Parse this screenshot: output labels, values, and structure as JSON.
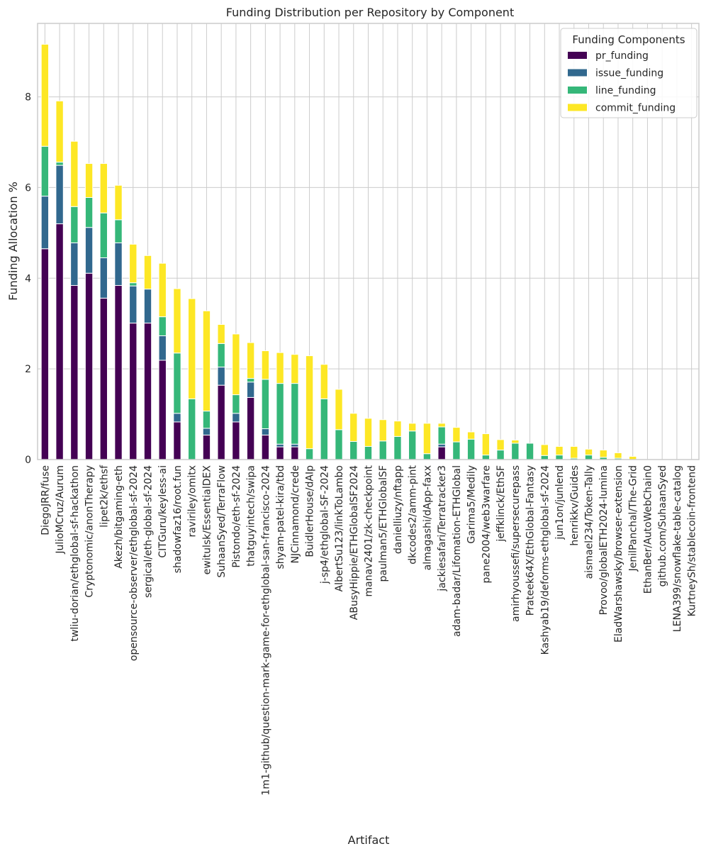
{
  "chart_data": {
    "type": "bar",
    "stacked": true,
    "title": "Funding Distribution per Repository by Component",
    "xlabel": "Artifact",
    "ylabel": "Funding Allocation %",
    "ylim": [
      0,
      9.62
    ],
    "yticks": [
      0,
      2,
      4,
      6,
      8
    ],
    "grid": true,
    "legend": {
      "title": "Funding Components",
      "placement": "top-right"
    },
    "categories": [
      "DiegoJRR/fuse",
      "JulioMCruz/Aurum",
      "twliu-dorian/ethglobal-sf-hackathon",
      "Cryptonomic/anonTherapy",
      "lipet2k/ethsf",
      "Akezh/bitgaming-eth",
      "opensource-observer/ethglobal-sf-2024",
      "sergical/eth-global-sf-2024",
      "CITGuru/keyless-ai",
      "shadowfaz16/root.fun",
      "raviriley/omitx",
      "ewitulsk/EssentialDEX",
      "SuhaanSyed/TerraFlow",
      "Pistondo/eth-sf-2024",
      "thatguyintech/swipa",
      "1m1-github/question-mark-game-for-ethglobal-san-francisco-2024",
      "shyam-patel-kira/tbd",
      "NJCinnamond/crede",
      "BuidlerHouse/dAIp",
      "j-sp4/ethglobal-SF-2024",
      "AlbertSu123/linkToLambo",
      "ABusyHippie/ETHGlobalSF2024",
      "manav2401/zk-checkpoint",
      "paulman5/ETHGlobalSF",
      "danielliuzy/nftapp",
      "dkcodes2/amm-pint",
      "almagashi/dApp-faxx",
      "jackiesafari/Terratracker3",
      "adam-badar/Lifomation-ETHGlobal",
      "Garima5/Medily",
      "pane2004/web3warfare",
      "jeffklinck/EthSF",
      "amirhyoussefi/supersecurepass",
      "Prateek64X/EthGlobal-Fantasy",
      "Kashyab19/deforms-ethglobal-sf-2024",
      "jun1on/junlend",
      "henrikkv/Guides",
      "aismael234/Token-Tally",
      "Provoo/globalETH2024-lumina",
      "EladWarshawsky/browser-extension",
      "JenilPanchal/The-Grid",
      "EthanBer/AutoWebChain0",
      "github.com/SuhaanSyed",
      "LENA399/snowflake-table-catalog",
      "KurtneySh/stablecoin-frontend"
    ],
    "series": [
      {
        "name": "pr_funding",
        "color": "#440154",
        "values": [
          4.65,
          5.2,
          3.84,
          4.11,
          3.56,
          3.84,
          3.01,
          3.01,
          2.19,
          0.83,
          0,
          0.54,
          1.64,
          0.83,
          1.37,
          0.54,
          0.28,
          0.28,
          0,
          0,
          0,
          0,
          0,
          0,
          0,
          0,
          0,
          0.28,
          0,
          0,
          0,
          0,
          0,
          0,
          0,
          0,
          0,
          0,
          0,
          0,
          0,
          0,
          0,
          0,
          0
        ]
      },
      {
        "name": "issue_funding",
        "color": "#31688e",
        "values": [
          1.16,
          1.29,
          0.94,
          1.01,
          0.89,
          0.94,
          0.82,
          0.75,
          0.54,
          0.19,
          0,
          0.15,
          0.4,
          0.19,
          0.34,
          0.14,
          0.06,
          0.06,
          0,
          0,
          0,
          0,
          0,
          0,
          0,
          0,
          0,
          0.06,
          0,
          0,
          0,
          0,
          0,
          0,
          0,
          0,
          0,
          0,
          0,
          0,
          0,
          0,
          0,
          0,
          0
        ]
      },
      {
        "name": "line_funding",
        "color": "#35b779",
        "values": [
          1.1,
          0.07,
          0.8,
          0.66,
          0.99,
          0.51,
          0.07,
          0,
          0.42,
          1.33,
          1.34,
          0.38,
          0.52,
          0.41,
          0.08,
          1.09,
          1.34,
          1.34,
          0.24,
          1.34,
          0.66,
          0.4,
          0.29,
          0.41,
          0.51,
          0.63,
          0.13,
          0.38,
          0.39,
          0.45,
          0.1,
          0.21,
          0.36,
          0.36,
          0.09,
          0.1,
          0.03,
          0.1,
          0.05,
          0.03,
          0,
          0,
          0,
          0,
          0
        ]
      },
      {
        "name": "commit_funding",
        "color": "#fde725",
        "values": [
          2.25,
          1.35,
          1.44,
          0.75,
          1.09,
          0.76,
          0.85,
          0.74,
          1.18,
          1.42,
          2.21,
          2.21,
          0.42,
          1.34,
          0.79,
          0.63,
          0.68,
          0.64,
          2.05,
          0.76,
          0.89,
          0.62,
          0.62,
          0.47,
          0.34,
          0.17,
          0.67,
          0.08,
          0.32,
          0.16,
          0.47,
          0.23,
          0.07,
          0,
          0.24,
          0.19,
          0.26,
          0.13,
          0.16,
          0.12,
          0.07,
          0,
          0,
          0,
          0
        ]
      }
    ]
  }
}
